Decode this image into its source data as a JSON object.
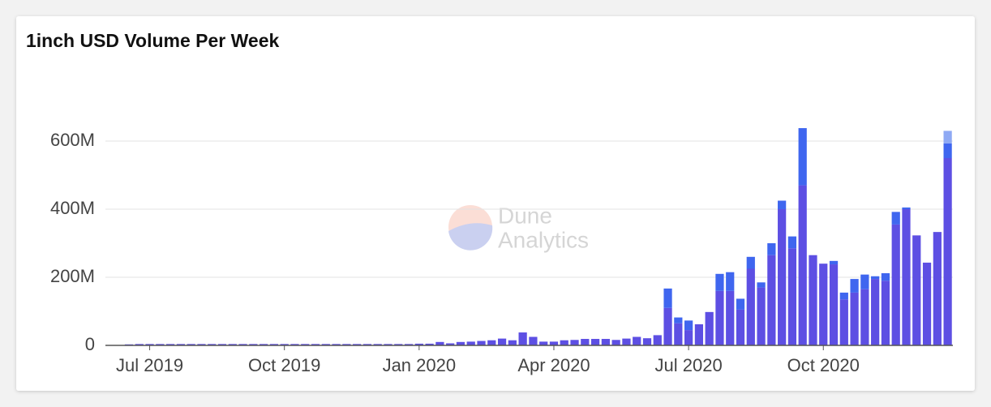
{
  "chart_data": {
    "type": "stacked-bar",
    "title": "1inch USD Volume Per Week",
    "watermark": {
      "line1": "Dune",
      "line2": "Analytics"
    },
    "categories": [
      null,
      null,
      "Jul 2019",
      null,
      null,
      null,
      null,
      null,
      null,
      null,
      null,
      null,
      null,
      null,
      null,
      "Oct 2019",
      null,
      null,
      null,
      null,
      null,
      null,
      null,
      null,
      null,
      null,
      null,
      null,
      "Jan 2020",
      null,
      null,
      null,
      null,
      null,
      null,
      null,
      null,
      null,
      null,
      null,
      null,
      "Apr 2020",
      null,
      null,
      null,
      null,
      null,
      null,
      null,
      null,
      null,
      null,
      null,
      null,
      "Jul 2020",
      null,
      null,
      null,
      null,
      null,
      null,
      null,
      null,
      null,
      null,
      null,
      null,
      "Oct 2020",
      null,
      null,
      null,
      null,
      null,
      null,
      null,
      null,
      null,
      null,
      null,
      null
    ],
    "series": [
      {
        "color": "#5d4fe3",
        "values": [
          3,
          4,
          4,
          4,
          4,
          4,
          4,
          4,
          4,
          4,
          4,
          4,
          4,
          4,
          4,
          4,
          4,
          4,
          4,
          4,
          4,
          4,
          4,
          4,
          4,
          4,
          4,
          4,
          5,
          5,
          10,
          6,
          10,
          11,
          13,
          15,
          20,
          15,
          38,
          25,
          11,
          11,
          15,
          16,
          19,
          19,
          19,
          16,
          20,
          25,
          21,
          30,
          110,
          65,
          45,
          62,
          98,
          160,
          160,
          105,
          225,
          170,
          265,
          400,
          285,
          470,
          265,
          240,
          238,
          135,
          155,
          165,
          195,
          190,
          355,
          400,
          323,
          243,
          333,
          550
        ]
      },
      {
        "color": "#3f66ef",
        "values": [
          0,
          0,
          0,
          0,
          0,
          0,
          0,
          0,
          0,
          0,
          0,
          0,
          0,
          0,
          0,
          0,
          0,
          0,
          0,
          0,
          0,
          0,
          0,
          0,
          0,
          0,
          0,
          0,
          0,
          0,
          0,
          0,
          0,
          0,
          0,
          0,
          0,
          0,
          0,
          0,
          0,
          0,
          0,
          0,
          0,
          0,
          0,
          0,
          0,
          0,
          0,
          0,
          57,
          17,
          28,
          0,
          0,
          50,
          55,
          32,
          35,
          15,
          35,
          25,
          35,
          168,
          0,
          0,
          10,
          20,
          40,
          43,
          8,
          22,
          37,
          5,
          0,
          0,
          0,
          43
        ]
      },
      {
        "color": "#8ea9f4",
        "values": [
          0,
          0,
          0,
          0,
          0,
          0,
          0,
          0,
          0,
          0,
          0,
          0,
          0,
          0,
          0,
          0,
          0,
          0,
          0,
          0,
          0,
          0,
          0,
          0,
          0,
          0,
          0,
          0,
          0,
          0,
          0,
          0,
          0,
          0,
          0,
          0,
          0,
          0,
          0,
          0,
          0,
          0,
          0,
          0,
          0,
          0,
          0,
          0,
          0,
          0,
          0,
          0,
          0,
          0,
          0,
          0,
          0,
          0,
          0,
          0,
          0,
          0,
          0,
          0,
          0,
          0,
          0,
          0,
          0,
          0,
          0,
          0,
          0,
          0,
          0,
          0,
          0,
          0,
          0,
          37
        ]
      }
    ],
    "ylim": [
      0,
      700
    ],
    "yticks": [
      0,
      {
        "value": 200,
        "label": "200M"
      },
      {
        "value": 400,
        "label": "400M"
      },
      {
        "value": 600,
        "label": "600M"
      }
    ],
    "grid": true
  }
}
